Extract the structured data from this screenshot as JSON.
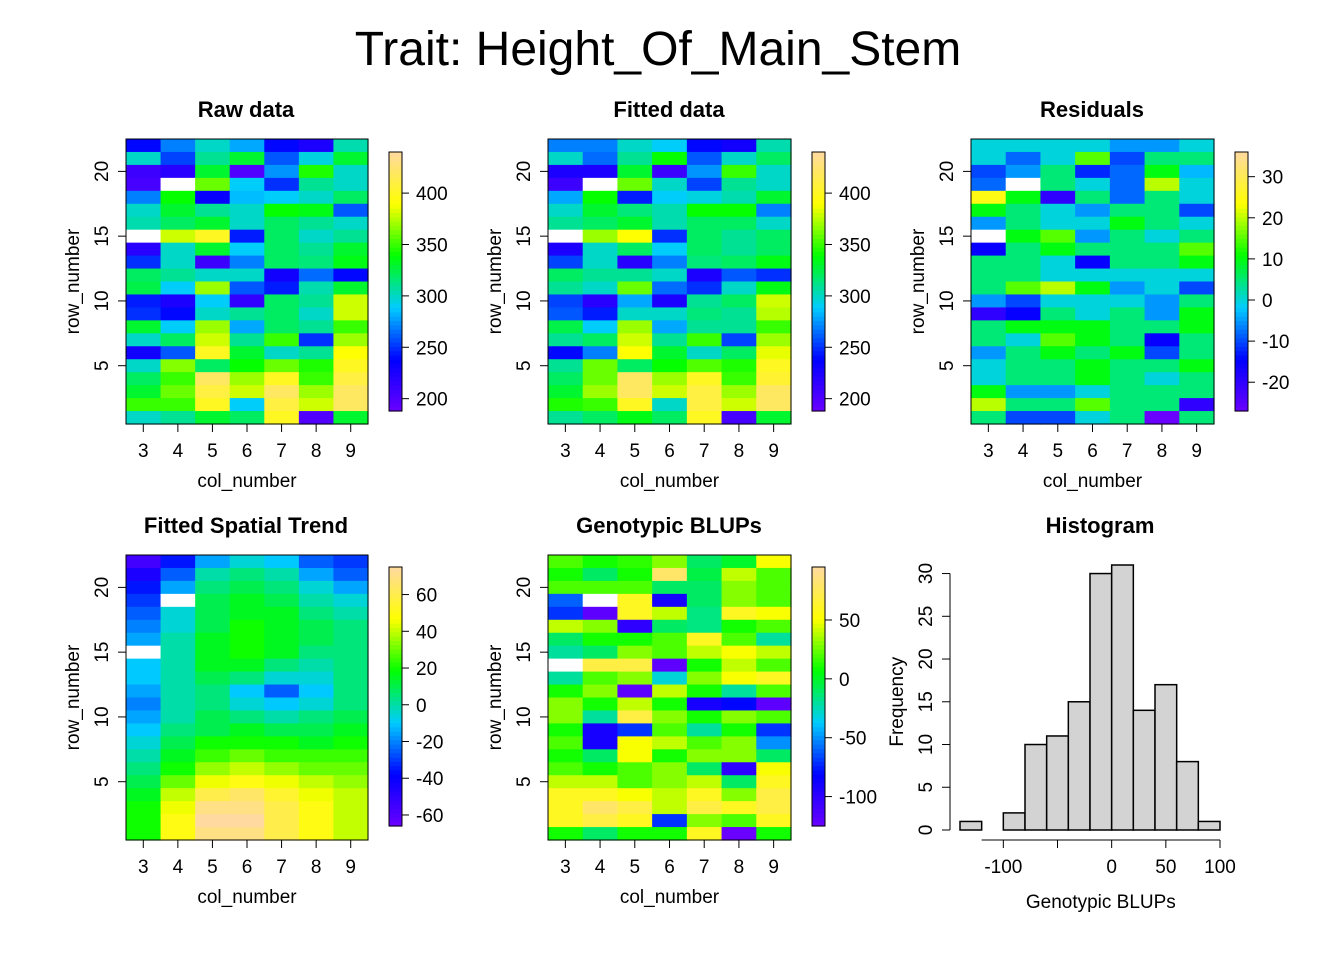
{
  "title": "Trait: Height_Of_Main_Stem",
  "colors": {
    "scale": [
      "#6a00ff",
      "#0000ff",
      "#00ccff",
      "#00ff00",
      "#ffff00",
      "#ffd9a0"
    ],
    "missing": "#ffffff",
    "histogram_bar": "#d3d3d3"
  },
  "chart_data": [
    {
      "type": "heatmap",
      "title": "Raw data",
      "xlabel": "col_number",
      "ylabel": "row_number",
      "x_ticks": [
        "3",
        "4",
        "5",
        "6",
        "7",
        "8",
        "9"
      ],
      "y_ticks": [
        "5",
        "10",
        "15",
        "20"
      ],
      "legend_ticks": [
        "200",
        "250",
        "300",
        "350",
        "400"
      ],
      "zlim": [
        188,
        440
      ],
      "rows_top_to_bottom": [
        [
          240,
          270,
          300,
          280,
          240,
          225,
          305
        ],
        [
          300,
          255,
          310,
          330,
          260,
          295,
          330
        ],
        [
          210,
          220,
          330,
          200,
          275,
          345,
          300
        ],
        [
          205,
          null,
          360,
          290,
          250,
          310,
          300
        ],
        [
          270,
          340,
          235,
          285,
          290,
          300,
          320
        ],
        [
          300,
          330,
          310,
          300,
          340,
          335,
          260
        ],
        [
          305,
          320,
          330,
          300,
          320,
          310,
          300
        ],
        [
          null,
          380,
          400,
          245,
          320,
          300,
          310
        ],
        [
          220,
          300,
          330,
          290,
          320,
          310,
          330
        ],
        [
          250,
          300,
          210,
          270,
          320,
          315,
          335
        ],
        [
          320,
          310,
          300,
          300,
          230,
          265,
          240
        ],
        [
          325,
          290,
          370,
          260,
          245,
          305,
          330
        ],
        [
          245,
          225,
          290,
          215,
          320,
          310,
          380
        ],
        [
          250,
          240,
          300,
          310,
          320,
          300,
          380
        ],
        [
          330,
          290,
          370,
          280,
          320,
          310,
          350
        ],
        [
          300,
          320,
          380,
          310,
          350,
          250,
          370
        ],
        [
          230,
          260,
          400,
          330,
          300,
          310,
          390
        ],
        [
          300,
          365,
          320,
          340,
          360,
          345,
          400
        ],
        [
          320,
          350,
          420,
          370,
          400,
          350,
          410
        ],
        [
          330,
          360,
          410,
          380,
          420,
          370,
          420
        ],
        [
          350,
          350,
          400,
          290,
          410,
          380,
          420
        ],
        [
          300,
          310,
          330,
          320,
          400,
          200,
          330
        ]
      ]
    },
    {
      "type": "heatmap",
      "title": "Fitted data",
      "xlabel": "col_number",
      "ylabel": "row_number",
      "x_ticks": [
        "3",
        "4",
        "5",
        "6",
        "7",
        "8",
        "9"
      ],
      "y_ticks": [
        "5",
        "10",
        "15",
        "20"
      ],
      "legend_ticks": [
        "200",
        "250",
        "300",
        "350",
        "400"
      ],
      "zlim": [
        188,
        440
      ],
      "rows_top_to_bottom": [
        [
          270,
          270,
          300,
          290,
          240,
          230,
          305
        ],
        [
          300,
          265,
          310,
          340,
          260,
          300,
          320
        ],
        [
          225,
          225,
          330,
          210,
          275,
          350,
          300
        ],
        [
          210,
          null,
          360,
          300,
          255,
          310,
          300
        ],
        [
          280,
          340,
          245,
          290,
          295,
          305,
          330
        ],
        [
          300,
          330,
          315,
          305,
          340,
          340,
          270
        ],
        [
          310,
          320,
          330,
          305,
          320,
          320,
          300
        ],
        [
          null,
          370,
          390,
          250,
          320,
          310,
          320
        ],
        [
          225,
          300,
          320,
          290,
          320,
          310,
          320
        ],
        [
          255,
          300,
          220,
          270,
          315,
          320,
          335
        ],
        [
          320,
          310,
          310,
          300,
          225,
          260,
          250
        ],
        [
          310,
          300,
          360,
          265,
          250,
          300,
          335
        ],
        [
          255,
          220,
          280,
          225,
          310,
          320,
          380
        ],
        [
          260,
          245,
          300,
          300,
          315,
          310,
          375
        ],
        [
          325,
          290,
          370,
          280,
          310,
          310,
          350
        ],
        [
          310,
          320,
          380,
          310,
          350,
          255,
          370
        ],
        [
          240,
          270,
          390,
          330,
          300,
          320,
          385
        ],
        [
          310,
          360,
          320,
          340,
          355,
          345,
          400
        ],
        [
          320,
          360,
          420,
          370,
          400,
          350,
          405
        ],
        [
          330,
          370,
          420,
          380,
          410,
          370,
          420
        ],
        [
          345,
          350,
          400,
          300,
          410,
          380,
          420
        ],
        [
          310,
          320,
          335,
          320,
          400,
          205,
          330
        ]
      ]
    },
    {
      "type": "heatmap",
      "title": "Residuals",
      "xlabel": "col_number",
      "ylabel": "row_number",
      "x_ticks": [
        "3",
        "4",
        "5",
        "6",
        "7",
        "8",
        "9"
      ],
      "y_ticks": [
        "5",
        "10",
        "15",
        "20"
      ],
      "legend_ticks": [
        "-20",
        "-10",
        "0",
        "10",
        "20",
        "30"
      ],
      "zlim": [
        -27,
        36
      ],
      "rows_top_to_bottom": [
        [
          0,
          0,
          0,
          0,
          -5,
          -5,
          0
        ],
        [
          0,
          -8,
          0,
          15,
          -10,
          5,
          5
        ],
        [
          -10,
          -5,
          5,
          -12,
          -8,
          10,
          -3
        ],
        [
          -8,
          null,
          5,
          0,
          -8,
          20,
          0
        ],
        [
          25,
          10,
          -20,
          5,
          -8,
          5,
          0
        ],
        [
          10,
          5,
          0,
          -5,
          5,
          5,
          -10
        ],
        [
          -5,
          5,
          0,
          0,
          10,
          5,
          0
        ],
        [
          null,
          10,
          15,
          -5,
          5,
          0,
          5
        ],
        [
          -15,
          5,
          10,
          5,
          5,
          5,
          15
        ],
        [
          5,
          5,
          0,
          -15,
          5,
          5,
          10
        ],
        [
          5,
          5,
          0,
          0,
          0,
          0,
          0
        ],
        [
          5,
          15,
          20,
          10,
          -5,
          0,
          -10
        ],
        [
          -5,
          -10,
          0,
          0,
          0,
          -5,
          5
        ],
        [
          -20,
          -15,
          5,
          0,
          5,
          -5,
          10
        ],
        [
          5,
          10,
          10,
          10,
          5,
          5,
          10
        ],
        [
          5,
          0,
          15,
          10,
          5,
          -15,
          5
        ],
        [
          -5,
          5,
          10,
          5,
          10,
          -10,
          5
        ],
        [
          0,
          5,
          5,
          10,
          5,
          5,
          10
        ],
        [
          0,
          5,
          5,
          10,
          5,
          0,
          5
        ],
        [
          10,
          -5,
          -5,
          0,
          5,
          5,
          5
        ],
        [
          20,
          5,
          5,
          15,
          5,
          5,
          -20
        ],
        [
          5,
          -10,
          -10,
          0,
          5,
          -27,
          5
        ]
      ]
    },
    {
      "type": "heatmap",
      "title": "Fitted Spatial Trend",
      "xlabel": "col_number",
      "ylabel": "row_number",
      "x_ticks": [
        "3",
        "4",
        "5",
        "6",
        "7",
        "8",
        "9"
      ],
      "y_ticks": [
        "5",
        "10",
        "15",
        "20"
      ],
      "legend_ticks": [
        "-60",
        "-40",
        "-20",
        "0",
        "20",
        "40",
        "60"
      ],
      "zlim": [
        -66,
        75
      ],
      "rows_top_to_bottom": [
        [
          -55,
          -35,
          -15,
          -5,
          -10,
          -25,
          -30
        ],
        [
          -45,
          -25,
          0,
          5,
          0,
          -15,
          -25
        ],
        [
          -35,
          -15,
          5,
          10,
          5,
          -5,
          -15
        ],
        [
          -30,
          null,
          10,
          15,
          10,
          0,
          -5
        ],
        [
          -25,
          -5,
          10,
          15,
          15,
          5,
          0
        ],
        [
          -20,
          -5,
          10,
          20,
          15,
          10,
          5
        ],
        [
          -15,
          0,
          15,
          20,
          15,
          10,
          5
        ],
        [
          null,
          0,
          15,
          20,
          15,
          5,
          5
        ],
        [
          -10,
          0,
          15,
          15,
          5,
          0,
          5
        ],
        [
          -10,
          0,
          10,
          5,
          -5,
          -5,
          5
        ],
        [
          -15,
          0,
          5,
          -10,
          -25,
          -10,
          5
        ],
        [
          -20,
          0,
          5,
          -5,
          -10,
          -5,
          5
        ],
        [
          -15,
          0,
          10,
          5,
          0,
          5,
          10
        ],
        [
          -10,
          5,
          10,
          15,
          10,
          10,
          15
        ],
        [
          -5,
          10,
          20,
          20,
          20,
          15,
          20
        ],
        [
          0,
          15,
          25,
          30,
          25,
          25,
          25
        ],
        [
          5,
          20,
          35,
          40,
          35,
          30,
          30
        ],
        [
          10,
          30,
          45,
          50,
          45,
          40,
          35
        ],
        [
          15,
          40,
          60,
          65,
          55,
          45,
          40
        ],
        [
          20,
          45,
          70,
          70,
          60,
          50,
          40
        ],
        [
          20,
          50,
          75,
          75,
          60,
          50,
          40
        ],
        [
          20,
          50,
          70,
          70,
          60,
          50,
          40
        ]
      ]
    },
    {
      "type": "heatmap",
      "title": "Genotypic BLUPs",
      "xlabel": "col_number",
      "ylabel": "row_number",
      "x_ticks": [
        "3",
        "4",
        "5",
        "6",
        "7",
        "8",
        "9"
      ],
      "y_ticks": [
        "5",
        "10",
        "15",
        "20"
      ],
      "legend_ticks": [
        "-100",
        "-50",
        "0",
        "50"
      ],
      "zlim": [
        -125,
        95
      ],
      "rows_top_to_bottom": [
        [
          20,
          10,
          15,
          30,
          -10,
          0,
          50
        ],
        [
          10,
          -10,
          10,
          80,
          -5,
          40,
          20
        ],
        [
          20,
          20,
          20,
          -10,
          -10,
          30,
          20
        ],
        [
          -60,
          null,
          60,
          -90,
          -10,
          30,
          20
        ],
        [
          -70,
          -120,
          60,
          40,
          -15,
          60,
          50
        ],
        [
          40,
          30,
          -100,
          -10,
          -15,
          10,
          20
        ],
        [
          -10,
          10,
          10,
          20,
          60,
          20,
          -20
        ],
        [
          -20,
          -10,
          30,
          20,
          40,
          50,
          40
        ],
        [
          null,
          70,
          70,
          -120,
          10,
          40,
          20
        ],
        [
          -20,
          20,
          30,
          -30,
          30,
          50,
          60
        ],
        [
          10,
          30,
          -120,
          40,
          10,
          -20,
          20
        ],
        [
          30,
          10,
          40,
          10,
          -90,
          -80,
          -120
        ],
        [
          30,
          -20,
          70,
          30,
          10,
          30,
          20
        ],
        [
          10,
          -90,
          -70,
          20,
          -20,
          10,
          -70
        ],
        [
          20,
          -90,
          50,
          40,
          20,
          30,
          -50
        ],
        [
          10,
          -10,
          50,
          10,
          30,
          30,
          -10
        ],
        [
          20,
          10,
          20,
          30,
          -10,
          -100,
          50
        ],
        [
          40,
          40,
          20,
          30,
          40,
          -10,
          60
        ],
        [
          60,
          60,
          50,
          40,
          60,
          30,
          70
        ],
        [
          60,
          80,
          70,
          40,
          70,
          60,
          70
        ],
        [
          60,
          70,
          60,
          -70,
          30,
          20,
          60
        ],
        [
          10,
          -10,
          10,
          10,
          60,
          -125,
          10
        ]
      ]
    },
    {
      "type": "bar",
      "title": "Histogram",
      "xlabel": "Genotypic BLUPs",
      "ylabel": "Frequency",
      "x_ticks": [
        "-100",
        "50",
        "100"
      ],
      "x_tick_values": [
        -100,
        50,
        100
      ],
      "x_tick_extra": [
        "0"
      ],
      "y_ticks": [
        "0",
        "5",
        "10",
        "15",
        "20",
        "25",
        "30"
      ],
      "xlim": [
        -140,
        100
      ],
      "ylim": [
        0,
        31
      ],
      "bin_edges": [
        -140,
        -120,
        -100,
        -80,
        -60,
        -40,
        -20,
        0,
        20,
        40,
        60,
        80,
        100
      ],
      "values": [
        1,
        0,
        2,
        10,
        11,
        15,
        30,
        31,
        14,
        17,
        8,
        1
      ]
    }
  ]
}
